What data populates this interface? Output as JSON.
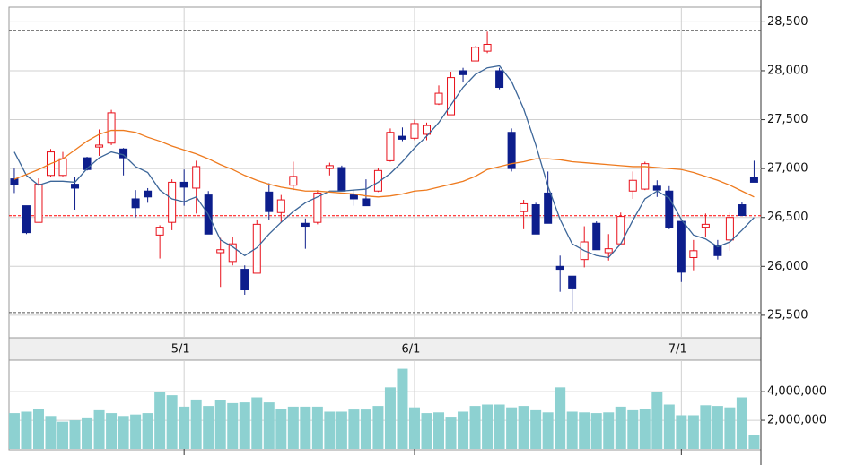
{
  "chart_data": [
    {
      "type": "candlestick",
      "categories": [
        null,
        null,
        null,
        null,
        null,
        null,
        null,
        null,
        null,
        null,
        null,
        null,
        null,
        null,
        "5/1",
        null,
        null,
        null,
        null,
        null,
        null,
        null,
        null,
        null,
        null,
        null,
        null,
        null,
        null,
        null,
        null,
        null,
        null,
        "6/1",
        null,
        null,
        null,
        null,
        null,
        null,
        null,
        null,
        null,
        null,
        null,
        null,
        null,
        null,
        null,
        null,
        null,
        null,
        null,
        null,
        null,
        "7/1",
        null,
        null,
        null,
        null,
        null,
        null
      ],
      "open": [
        26895,
        26620,
        26450,
        26930,
        26930,
        26840,
        27110,
        27220,
        27260,
        27200,
        26690,
        26770,
        26320,
        26450,
        26860,
        26800,
        26730,
        26140,
        26050,
        25970,
        25930,
        26760,
        26550,
        26830,
        26440,
        26450,
        27000,
        27010,
        26730,
        26690,
        26770,
        27080,
        27330,
        27310,
        27350,
        27660,
        27550,
        28000,
        28100,
        28200,
        28000,
        27370,
        26560,
        26630,
        26750,
        26000,
        25900,
        26070,
        26440,
        26140,
        26230,
        26770,
        26790,
        26820,
        26770,
        26460,
        26090,
        26400,
        26210,
        26270,
        26630,
        26910
      ],
      "high": [
        27000,
        26620,
        26900,
        27200,
        27170,
        26910,
        27120,
        27400,
        27600,
        27210,
        26780,
        26800,
        26420,
        26890,
        26990,
        27080,
        26770,
        26290,
        26300,
        26010,
        26480,
        26850,
        26730,
        27070,
        26490,
        26780,
        27060,
        27030,
        26790,
        26890,
        27010,
        27410,
        27420,
        27500,
        27470,
        27850,
        27990,
        28030,
        28250,
        28400,
        28030,
        27410,
        26680,
        26650,
        26970,
        26110,
        25900,
        26410,
        26460,
        26330,
        26550,
        26970,
        27070,
        26880,
        26820,
        26460,
        26270,
        26540,
        26270,
        26550,
        26660,
        27080
      ],
      "low": [
        26750,
        26330,
        26450,
        26910,
        26920,
        26580,
        26980,
        27130,
        27240,
        26930,
        26500,
        26650,
        26080,
        26370,
        26620,
        26540,
        26330,
        25790,
        26010,
        25710,
        25930,
        26470,
        26450,
        26780,
        26180,
        26430,
        26930,
        26770,
        26620,
        26620,
        26760,
        27070,
        27280,
        27290,
        27290,
        27650,
        27550,
        27880,
        28100,
        28180,
        27810,
        26970,
        26380,
        26330,
        26440,
        25740,
        25540,
        25990,
        26170,
        26060,
        26220,
        26690,
        26780,
        26710,
        26380,
        25840,
        25960,
        26300,
        26070,
        26160,
        26520,
        26860
      ],
      "close": [
        26840,
        26345,
        26840,
        27170,
        27100,
        26800,
        26990,
        27240,
        27570,
        27110,
        26600,
        26710,
        26400,
        26860,
        26810,
        27020,
        26330,
        26170,
        26230,
        25760,
        26430,
        26560,
        26680,
        26920,
        26410,
        26750,
        27030,
        26770,
        26690,
        26620,
        26980,
        27370,
        27300,
        27460,
        27440,
        27770,
        27930,
        27960,
        28240,
        28270,
        27830,
        27000,
        26640,
        26330,
        26440,
        25970,
        25770,
        26250,
        26170,
        26180,
        26510,
        26880,
        27050,
        26780,
        26400,
        25940,
        26160,
        26430,
        26110,
        26500,
        26520,
        26860
      ],
      "up_color": "#e8101a",
      "down_color": "#0d1e8c",
      "lines": [
        {
          "color": "#3c6699",
          "values": [
            27170,
            26930,
            26830,
            26870,
            26870,
            26860,
            27000,
            27110,
            27170,
            27140,
            27020,
            26960,
            26780,
            26690,
            26660,
            26710,
            26530,
            26270,
            26200,
            26110,
            26190,
            26330,
            26450,
            26560,
            26650,
            26710,
            26770,
            26770,
            26780,
            26790,
            26860,
            26950,
            27070,
            27210,
            27330,
            27470,
            27650,
            27830,
            27960,
            28030,
            28050,
            27890,
            27610,
            27240,
            26820,
            26480,
            26230,
            26160,
            26110,
            26090,
            26230,
            26470,
            26690,
            26770,
            26700,
            26480,
            26320,
            26280,
            26200,
            26250,
            26370,
            26500
          ]
        },
        {
          "color": "#ee7a1e",
          "values": [
            26890,
            26940,
            26990,
            27050,
            27100,
            27190,
            27280,
            27350,
            27390,
            27390,
            27370,
            27320,
            27280,
            27230,
            27190,
            27150,
            27100,
            27040,
            26990,
            26930,
            26880,
            26840,
            26810,
            26790,
            26770,
            26770,
            26760,
            26750,
            26740,
            26720,
            26710,
            26720,
            26740,
            26770,
            26780,
            26810,
            26840,
            26870,
            26920,
            26990,
            27020,
            27050,
            27070,
            27100,
            27100,
            27090,
            27070,
            27060,
            27050,
            27040,
            27030,
            27020,
            27020,
            27010,
            27000,
            26990,
            26960,
            26920,
            26880,
            26830,
            26770,
            26710
          ]
        }
      ],
      "reference_lines": [
        {
          "value": 28410,
          "color": "#555555"
        },
        {
          "value": 26518,
          "color": "#ff0000"
        },
        {
          "value": 25528,
          "color": "#555555"
        }
      ],
      "ylim": [
        25270,
        28650
      ],
      "yticks": [
        {
          "value": 25500,
          "label": "25,500"
        },
        {
          "value": 26000,
          "label": "26,000"
        },
        {
          "value": 26500,
          "label": "26,500"
        },
        {
          "value": 27000,
          "label": "27,000"
        },
        {
          "value": 27500,
          "label": "27,500"
        },
        {
          "value": 28000,
          "label": "28,000"
        },
        {
          "value": 28500,
          "label": "28,500"
        }
      ],
      "grid": true
    },
    {
      "type": "bar",
      "color": "#8dd1d1",
      "values": [
        2500000,
        2600000,
        2800000,
        2300000,
        1900000,
        2000000,
        2200000,
        2700000,
        2500000,
        2300000,
        2400000,
        2500000,
        4000000,
        3750000,
        2950000,
        3450000,
        3000000,
        3400000,
        3200000,
        3250000,
        3600000,
        3250000,
        2800000,
        2950000,
        2950000,
        2950000,
        2600000,
        2600000,
        2750000,
        2750000,
        3000000,
        4300000,
        5600000,
        2900000,
        2500000,
        2550000,
        2250000,
        2600000,
        3000000,
        3100000,
        3100000,
        2900000,
        3000000,
        2700000,
        2550000,
        4300000,
        2600000,
        2550000,
        2500000,
        2550000,
        2950000,
        2700000,
        2800000,
        3950000,
        3100000,
        2350000,
        2350000,
        3050000,
        3000000,
        2900000,
        3600000,
        950000
      ],
      "ylim": [
        0,
        6200000
      ],
      "yticks": [
        {
          "value": 2000000,
          "label": "2,000,000"
        },
        {
          "value": 4000000,
          "label": "4,000,000"
        }
      ],
      "grid": true
    }
  ]
}
